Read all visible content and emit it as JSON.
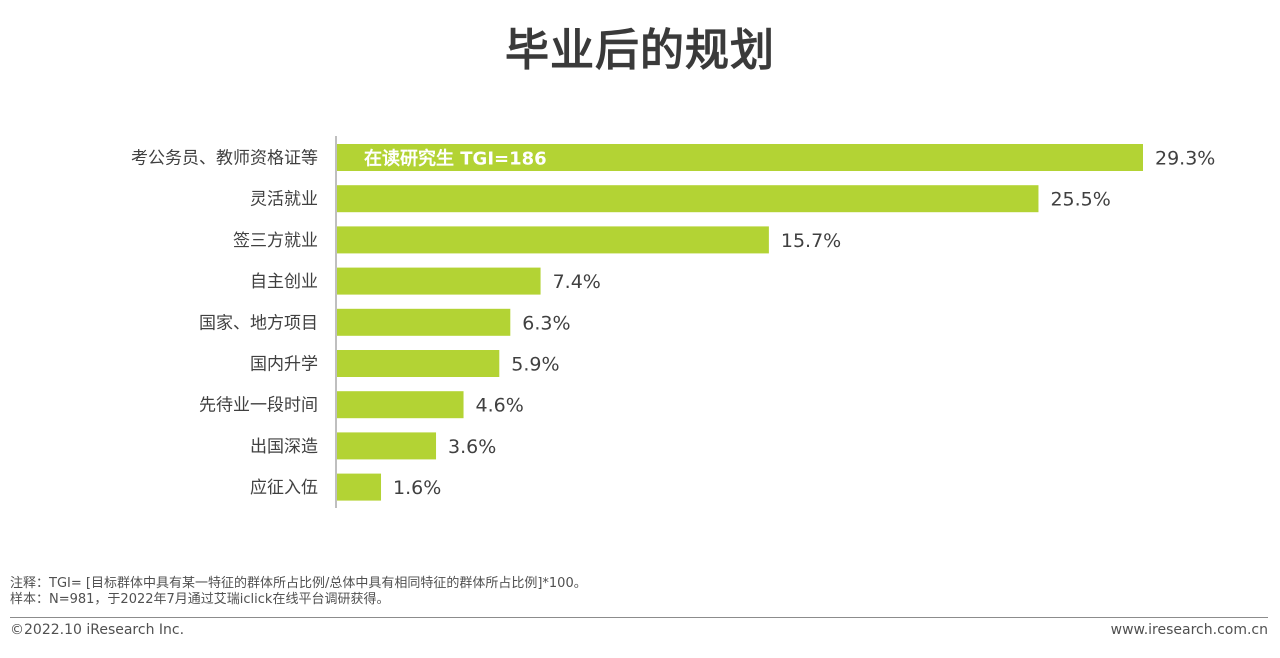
{
  "title": "毕业后的规划",
  "chart_data": {
    "type": "bar",
    "orientation": "horizontal",
    "categories": [
      "考公务员、教师资格证等",
      "灵活就业",
      "签三方就业",
      "自主创业",
      "国家、地方项目",
      "国内升学",
      "先待业一段时间",
      "出国深造",
      "应征入伍"
    ],
    "values": [
      29.3,
      25.5,
      15.7,
      7.4,
      6.3,
      5.9,
      4.6,
      3.6,
      1.6
    ],
    "value_labels": [
      "29.3%",
      "25.5%",
      "15.7%",
      "7.4%",
      "6.3%",
      "5.9%",
      "4.6%",
      "3.6%",
      "1.6%"
    ],
    "xlim": [
      0,
      29.3
    ],
    "bar_color": "#b3d334",
    "annotation": "在读研究生 TGI=186",
    "grid": false,
    "legend": "none"
  },
  "notes": {
    "line1": "注释：TGI= [目标群体中具有某一特征的群体所占比例/总体中具有相同特征的群体所占比例]*100。",
    "line2": "样本：N=981，于2022年7月通过艾瑞iclick在线平台调研获得。"
  },
  "footer": {
    "copyright": "©2022.10 iResearch Inc.",
    "website": "www.iresearch.com.cn"
  }
}
